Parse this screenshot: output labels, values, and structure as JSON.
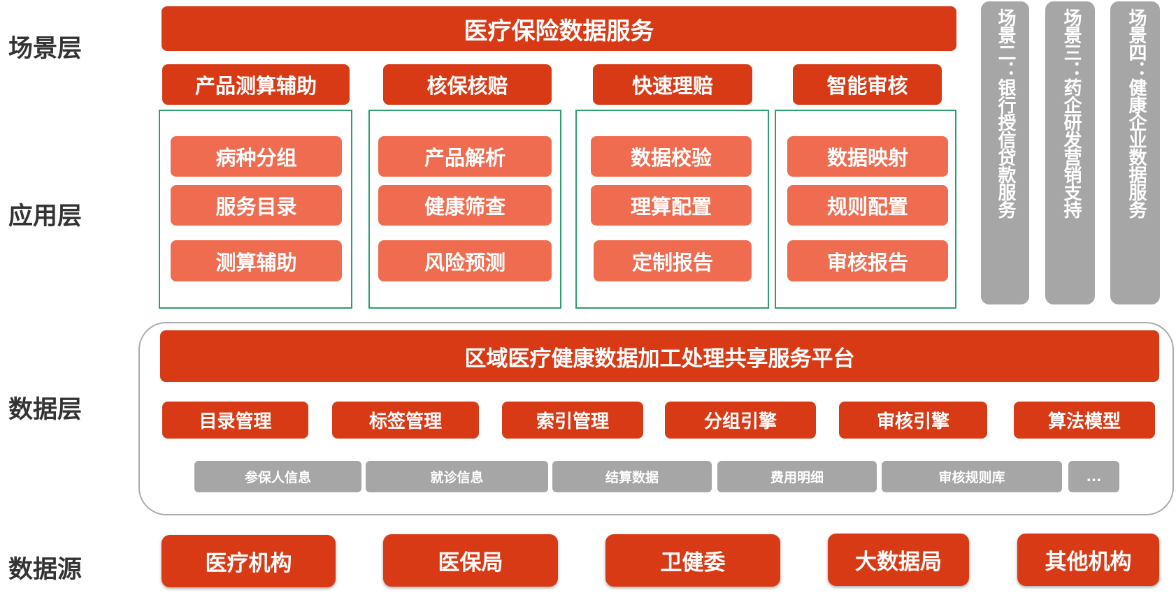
{
  "layers": {
    "scene": "场景层",
    "app": "应用层",
    "data": "数据层",
    "source": "数据源"
  },
  "top_title": "医疗保险数据服务",
  "groups": [
    {
      "title": "产品测算辅助",
      "items": [
        "病种分组",
        "服务目录",
        "测算辅助"
      ]
    },
    {
      "title": "核保核赔",
      "items": [
        "产品解析",
        "健康筛查",
        "风险预测"
      ]
    },
    {
      "title": "快速理赔",
      "items": [
        "数据校验",
        "理算配置",
        "定制报告"
      ]
    },
    {
      "title": "智能审核",
      "items": [
        "数据映射",
        "规则配置",
        "审核报告"
      ]
    }
  ],
  "scenes": [
    "场景二：银行授信贷款服务",
    "场景三：药企研发营销支持",
    "场景四：健康企业数据服务"
  ],
  "platform": "区域医疗健康数据加工处理共享服务平台",
  "modules": [
    "目录管理",
    "标签管理",
    "索引管理",
    "分组引擎",
    "审核引擎",
    "算法模型"
  ],
  "data_items": [
    "参保人信息",
    "就诊信息",
    "结算数据",
    "费用明细",
    "审核规则库",
    "..."
  ],
  "sources": [
    "医疗机构",
    "医保局",
    "卫健委",
    "大数据局",
    "其他机构"
  ],
  "colors": {
    "primary": "#d93a16",
    "secondary": "#ef6c50",
    "gray": "#a6a6a6",
    "border": "#2e9e6e"
  }
}
